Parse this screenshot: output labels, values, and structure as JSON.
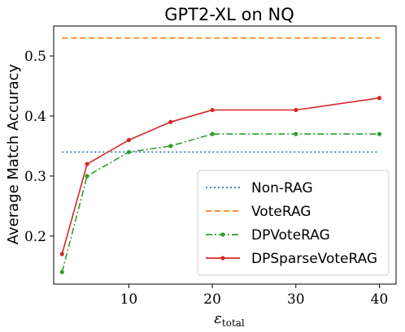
{
  "chart_data": {
    "type": "line",
    "title": "GPT2-XL on NQ",
    "xlabel": "ε",
    "xlabel_subscript": "total",
    "ylabel": "Average Match Accuracy",
    "xlim": [
      1.0,
      42.0
    ],
    "ylim": [
      0.12,
      0.55
    ],
    "xticks": [
      10,
      20,
      30,
      40
    ],
    "yticks": [
      0.2,
      0.3,
      0.4,
      0.5
    ],
    "grid": false,
    "legend_position": "lower-right",
    "series": [
      {
        "name": "Non-RAG",
        "color": "#1f77b4",
        "style": "dotted",
        "marker": false,
        "x": [
          2,
          40
        ],
        "y": [
          0.34,
          0.34
        ]
      },
      {
        "name": "VoteRAG",
        "color": "#ff7f0e",
        "style": "dashed",
        "marker": false,
        "x": [
          2,
          40
        ],
        "y": [
          0.53,
          0.53
        ]
      },
      {
        "name": "DPVoteRAG",
        "color": "#2ca02c",
        "style": "dashdot",
        "marker": true,
        "x": [
          2,
          5,
          10,
          15,
          20,
          30,
          40
        ],
        "y": [
          0.14,
          0.3,
          0.34,
          0.35,
          0.37,
          0.37,
          0.37
        ]
      },
      {
        "name": "DPSparseVoteRAG",
        "color": "#d62728",
        "style": "solid",
        "marker": true,
        "x": [
          2,
          5,
          10,
          15,
          20,
          30,
          40
        ],
        "y": [
          0.17,
          0.32,
          0.36,
          0.39,
          0.41,
          0.41,
          0.43
        ]
      }
    ]
  }
}
